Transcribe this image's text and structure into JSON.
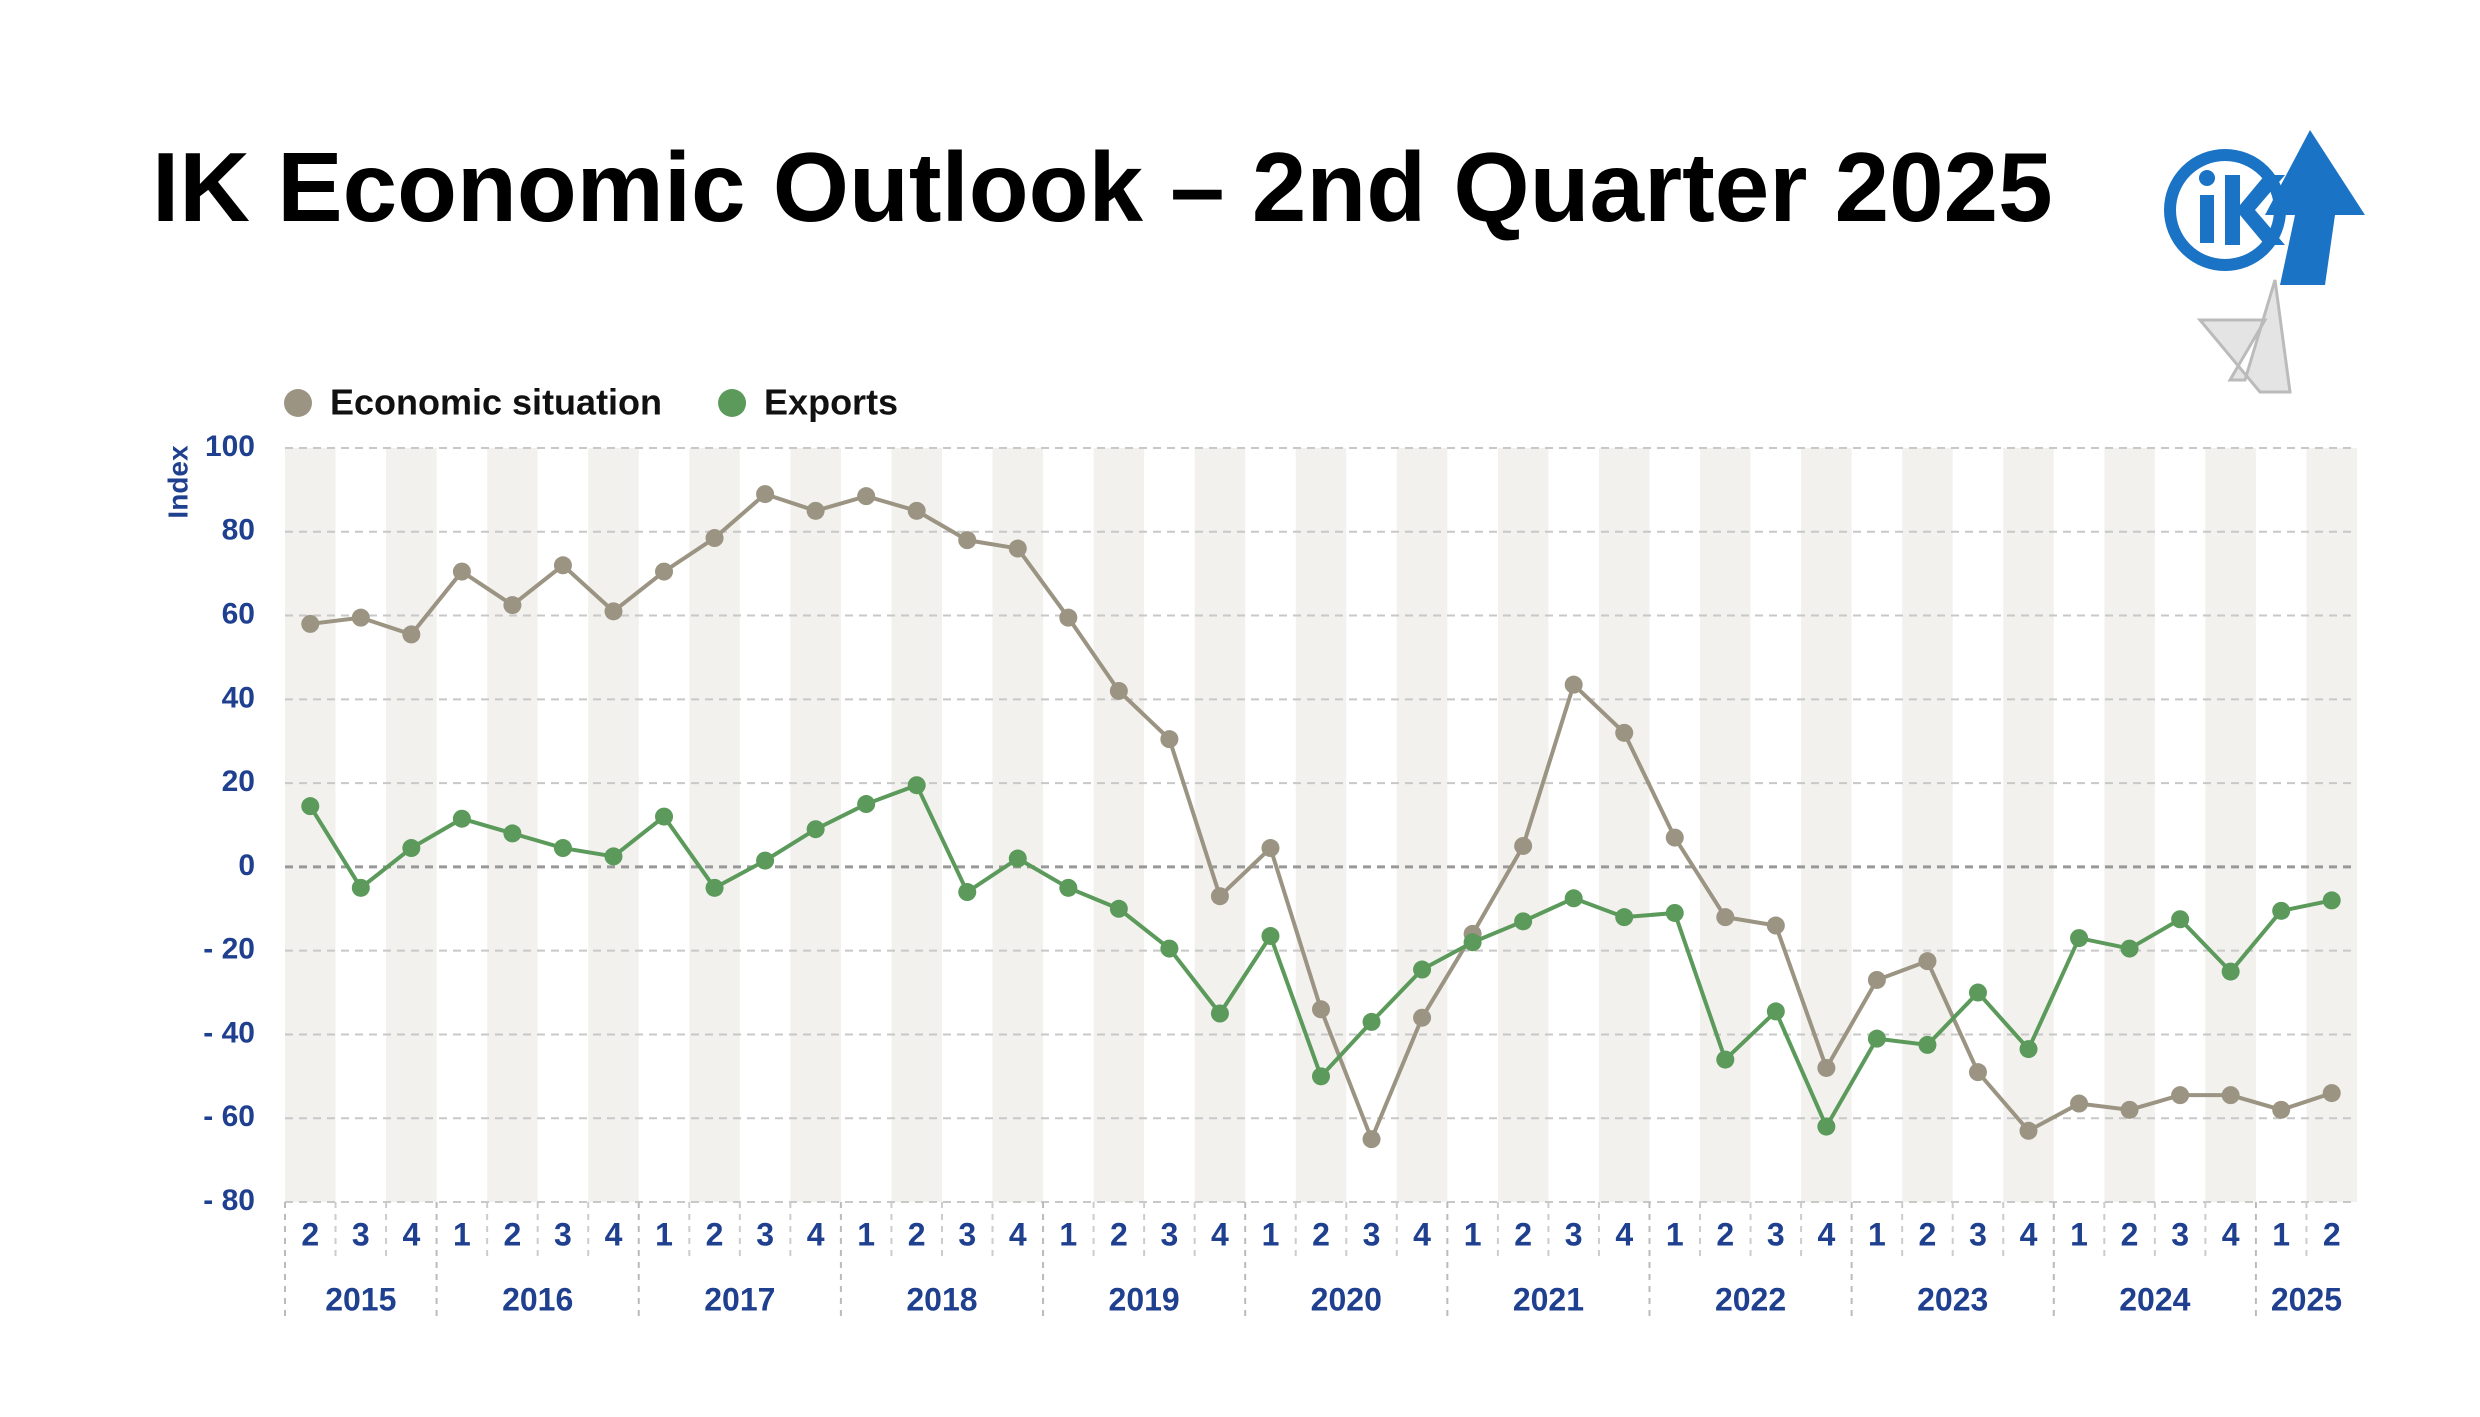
{
  "chart_data": {
    "type": "line",
    "title": "IK Economic Outlook – 2nd Quarter 2025",
    "y_axis_label": "Index",
    "categories": [
      "2",
      "3",
      "4",
      "1",
      "2",
      "3",
      "4",
      "1",
      "2",
      "3",
      "4",
      "1",
      "2",
      "3",
      "4",
      "1",
      "2",
      "3",
      "4",
      "1",
      "2",
      "3",
      "4",
      "1",
      "2",
      "3",
      "4",
      "1",
      "2",
      "3",
      "4",
      "1",
      "2",
      "3",
      "4",
      "1",
      "2",
      "3",
      "4",
      "1",
      "2"
    ],
    "years": [
      "2015",
      "2016",
      "2017",
      "2018",
      "2019",
      "2020",
      "2021",
      "2022",
      "2023",
      "2024",
      "2025"
    ],
    "series": [
      {
        "name": "Economic situation",
        "color": "#9b9483",
        "values": [
          58,
          59.5,
          55.5,
          70.5,
          62.5,
          72,
          61,
          70.5,
          78.5,
          89,
          85,
          88.5,
          85,
          78,
          76,
          59.5,
          42,
          30.5,
          -7,
          4.5,
          -34,
          -65,
          -36,
          -16,
          5,
          43.5,
          32,
          7,
          -12,
          -14,
          -48,
          -27,
          -22.5,
          -49,
          -63,
          -56.5,
          -58,
          -54.5,
          -54.5,
          -58,
          -54
        ]
      },
      {
        "name": "Exports",
        "color": "#5b9a5b",
        "values": [
          14.5,
          -5,
          4.5,
          11.5,
          8,
          4.5,
          2.5,
          12,
          -5,
          1.5,
          9,
          15,
          19.5,
          -6,
          2,
          -5,
          -10,
          -19.5,
          -35,
          -16.5,
          -50,
          -37,
          -24.5,
          -18,
          -13,
          -7.5,
          -12,
          -11,
          -46,
          -34.5,
          -62,
          -41,
          -42.5,
          -30,
          -43.5,
          -17,
          -19.5,
          -12.5,
          -25,
          -10.5,
          -8
        ]
      }
    ],
    "ylim": [
      -80,
      100
    ],
    "yticks": [
      100,
      80,
      60,
      40,
      20,
      0,
      {
        "value": -20,
        "label": "- 20"
      },
      {
        "value": -40,
        "label": "- 40"
      },
      {
        "value": -60,
        "label": "- 60"
      },
      {
        "value": -80,
        "label": "- 80"
      }
    ],
    "grid": true,
    "legend": "top-left"
  }
}
